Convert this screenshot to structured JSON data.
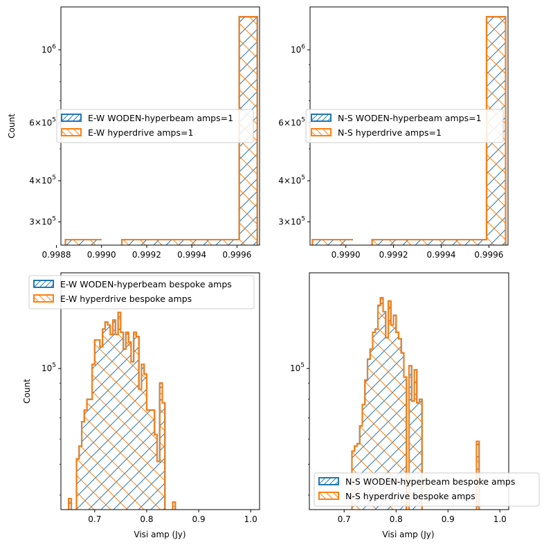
{
  "colors": {
    "woden": "#1f77b4",
    "hyperdrive": "#ff7f0e"
  },
  "chart_data": [
    {
      "type": "histogram",
      "panel": "top-left",
      "ylabel": "Count",
      "xlabel": "",
      "yscale": "log",
      "xlim": [
        0.99882,
        0.9997
      ],
      "ylim": [
        255000,
        1350000
      ],
      "x_ticks": [
        "0.9988",
        "0.9990",
        "0.9992",
        "0.9994",
        "0.9996"
      ],
      "x_tick_values": [
        0.9988,
        0.999,
        0.9992,
        0.9994,
        0.9996
      ],
      "y_ticks": [
        "10^6",
        "6×10^5",
        "4×10^5",
        "3×10^5"
      ],
      "y_tick_values": [
        1000000,
        600000,
        400000,
        300000
      ],
      "legend_position": "center-left",
      "series": [
        {
          "name": "E-W WODEN-hyperbeam amps=1",
          "bins": [
            [
              0.99884,
              0.999,
              265000
            ],
            [
              0.99909,
              0.99961,
              265000
            ],
            [
              0.99961,
              0.99969,
              1260000
            ]
          ]
        },
        {
          "name": "E-W hyperdrive amps=1",
          "bins": [
            [
              0.99884,
              0.999,
              265000
            ],
            [
              0.99909,
              0.99961,
              265000
            ],
            [
              0.99961,
              0.99969,
              1260000
            ]
          ]
        }
      ]
    },
    {
      "type": "histogram",
      "panel": "top-right",
      "ylabel": "",
      "xlabel": "",
      "yscale": "log",
      "xlim": [
        0.99885,
        0.99968
      ],
      "ylim": [
        255000,
        1350000
      ],
      "x_ticks": [
        "0.9990",
        "0.9992",
        "0.9994",
        "0.9996"
      ],
      "x_tick_values": [
        0.999,
        0.9992,
        0.9994,
        0.9996
      ],
      "y_ticks": [
        "10^6",
        "6×10^5",
        "4×10^5",
        "3×10^5"
      ],
      "y_tick_values": [
        1000000,
        600000,
        400000,
        300000
      ],
      "legend_position": "center-left",
      "series": [
        {
          "name": "N-S WODEN-hyperbeam amps=1",
          "bins": [
            [
              0.99886,
              0.99903,
              265000
            ],
            [
              0.99911,
              0.99959,
              265000
            ],
            [
              0.99959,
              0.99967,
              1260000
            ]
          ]
        },
        {
          "name": "N-S hyperdrive amps=1",
          "bins": [
            [
              0.99886,
              0.99903,
              265000
            ],
            [
              0.99911,
              0.99959,
              265000
            ],
            [
              0.99959,
              0.99967,
              1260000
            ]
          ]
        }
      ]
    },
    {
      "type": "histogram",
      "panel": "bottom-left",
      "ylabel": "Count",
      "xlabel": "Visi amp (Jy)",
      "yscale": "log",
      "xlim": [
        0.635,
        1.017
      ],
      "ylim": [
        36000,
        200000
      ],
      "x_ticks": [
        "0.7",
        "0.8",
        "0.9",
        "1.0"
      ],
      "x_tick_values": [
        0.7,
        0.8,
        0.9,
        1.0
      ],
      "y_ticks": [
        "10^5"
      ],
      "y_tick_values": [
        100000
      ],
      "legend_position": "upper-left",
      "bin_width": 0.005,
      "bins_start": 0.65,
      "series": [
        {
          "name": "E-W WODEN-hyperbeam bespoke amps",
          "counts": [
            39000,
            0,
            0,
            52000,
            57000,
            68000,
            74000,
            80000,
            80000,
            103000,
            123000,
            123000,
            117000,
            133000,
            140000,
            137000,
            128000,
            142000,
            128000,
            150000,
            130000,
            115000,
            130000,
            121000,
            105000,
            130000,
            126000,
            86000,
            103000,
            96000,
            74000,
            74000,
            74000,
            62000,
            51000,
            90000,
            78000,
            0,
            0,
            0,
            38000
          ]
        },
        {
          "name": "E-W hyperdrive bespoke amps",
          "counts": [
            39000,
            0,
            0,
            52000,
            57000,
            68000,
            74000,
            80000,
            80000,
            103000,
            123000,
            123000,
            117000,
            133000,
            140000,
            137000,
            128000,
            142000,
            128000,
            150000,
            130000,
            115000,
            130000,
            121000,
            105000,
            130000,
            126000,
            86000,
            103000,
            96000,
            74000,
            74000,
            74000,
            62000,
            51000,
            90000,
            78000,
            0,
            0,
            0,
            38000
          ]
        }
      ]
    },
    {
      "type": "histogram",
      "panel": "bottom-right",
      "ylabel": "",
      "xlabel": "Visi amp (Jy)",
      "yscale": "log",
      "xlim": [
        0.633,
        1.017
      ],
      "ylim": [
        36000,
        200000
      ],
      "x_ticks": [
        "0.7",
        "0.8",
        "0.9",
        "1.0"
      ],
      "x_tick_values": [
        0.7,
        0.8,
        0.9,
        1.0
      ],
      "y_ticks": [
        "10^5"
      ],
      "y_tick_values": [
        100000
      ],
      "legend_position": "lower-right",
      "bin_width": 0.005,
      "bins_start": 0.715,
      "series": [
        {
          "name": "N-S WODEN-hyperbeam bespoke amps",
          "counts": [
            55000,
            57000,
            58000,
            66000,
            77000,
            92000,
            107000,
            115000,
            130000,
            133000,
            158000,
            167000,
            151000,
            125000,
            163000,
            137000,
            147000,
            130000,
            124000,
            112000,
            94000,
            0,
            102000,
            79000,
            99000,
            78000,
            80000,
            0,
            0,
            0,
            0,
            0,
            0,
            0,
            0,
            0,
            0,
            0,
            0,
            0,
            0,
            0,
            0,
            0,
            0,
            0,
            0,
            0,
            59000
          ]
        },
        {
          "name": "N-S hyperdrive bespoke amps",
          "counts": [
            55000,
            57000,
            58000,
            66000,
            77000,
            92000,
            107000,
            115000,
            130000,
            133000,
            158000,
            167000,
            151000,
            125000,
            163000,
            137000,
            147000,
            130000,
            124000,
            112000,
            94000,
            0,
            102000,
            79000,
            99000,
            78000,
            80000,
            0,
            0,
            0,
            0,
            0,
            0,
            0,
            0,
            0,
            0,
            0,
            0,
            0,
            0,
            0,
            0,
            0,
            0,
            0,
            0,
            0,
            59000
          ]
        }
      ]
    }
  ]
}
